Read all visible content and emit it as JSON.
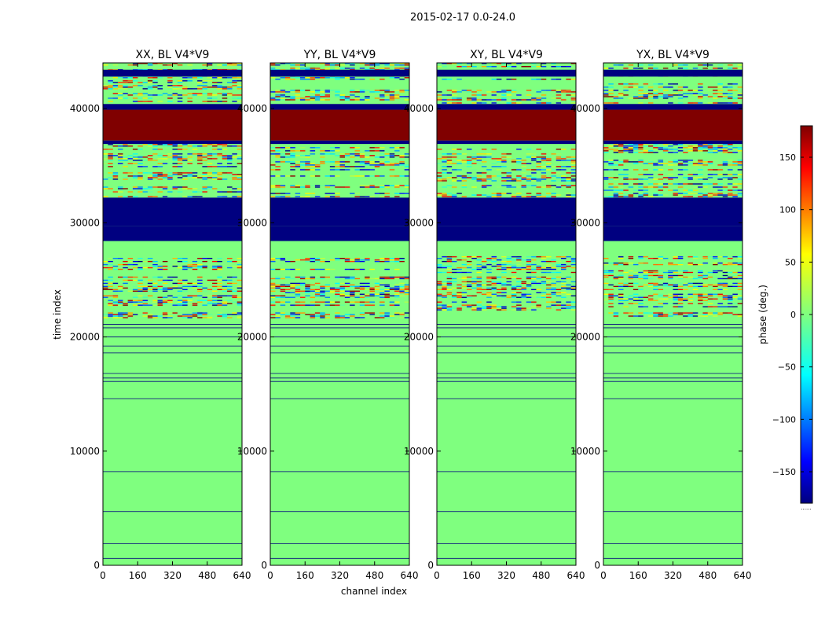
{
  "figure": {
    "suptitle": "2015-02-17 0.0-24.0"
  },
  "colormap": "jet",
  "colors": {
    "background": "#7fff7f",
    "frame": "#000000"
  },
  "chart_data": {
    "type": "heatmap",
    "xlabel": "channel index",
    "ylabel": "time index",
    "x_range": [
      0,
      640
    ],
    "y_range": [
      0,
      44000
    ],
    "x_ticks": [
      0,
      160,
      320,
      480,
      640
    ],
    "y_ticks": [
      0,
      10000,
      20000,
      30000,
      40000
    ],
    "panels": [
      {
        "title": "XX, BL V4*V9"
      },
      {
        "title": "YY, BL V4*V9"
      },
      {
        "title": "XY, BL V4*V9"
      },
      {
        "title": "YX, BL V4*V9"
      }
    ],
    "colorbar": {
      "label": "phase (deg.)",
      "range": [
        -180,
        180
      ],
      "ticks": [
        150,
        100,
        50,
        0,
        -50,
        -100,
        -150
      ],
      "tick_labels": [
        "150",
        "100",
        "50",
        "0",
        "−50",
        "−100",
        "−150"
      ],
      "under_note": "......"
    },
    "bands": [
      {
        "y": [
          37200,
          39900
        ],
        "value": 180,
        "note": "solid"
      },
      {
        "y": [
          39900,
          40400
        ],
        "value": -180,
        "note": "solid"
      },
      {
        "y": [
          36900,
          37200
        ],
        "value": -180,
        "note": "solid"
      },
      {
        "y": [
          29700,
          32200
        ],
        "value": -180,
        "note": "solid"
      },
      {
        "y": [
          28400,
          29700
        ],
        "value": -180,
        "note": "solid"
      },
      {
        "y": [
          42800,
          43400
        ],
        "value": -180,
        "note": "solid"
      },
      {
        "y": [
          32200,
          34000
        ],
        "value": null,
        "note": "noisy"
      },
      {
        "y": [
          34000,
          36900
        ],
        "value": null,
        "note": "noisy"
      },
      {
        "y": [
          21600,
          27200
        ],
        "value": null,
        "note": "noisy"
      },
      {
        "y": [
          40400,
          44000
        ],
        "value": null,
        "note": "noisy"
      }
    ]
  }
}
